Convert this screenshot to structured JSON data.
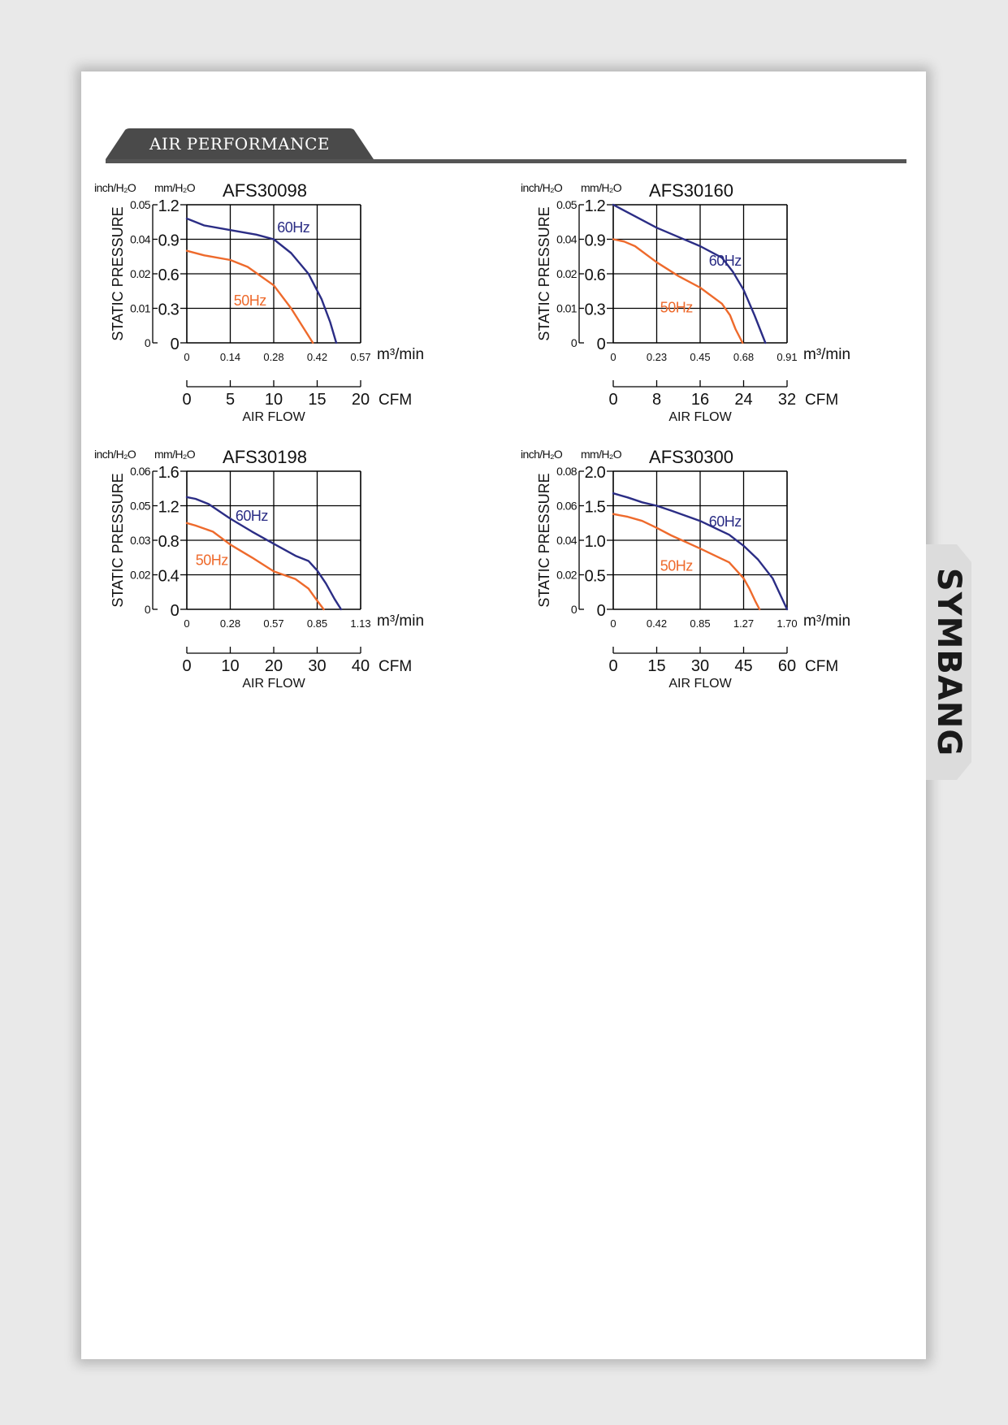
{
  "section": {
    "title": "AIR PERFORMANCE"
  },
  "brand": {
    "name": "SYMBANG",
    "color": "#1a1a1a",
    "accent": "#d8242a"
  },
  "colors": {
    "series_60hz": "#2b2d85",
    "series_50hz": "#ee6a2c",
    "header_rule": "#555555"
  },
  "chart_data": [
    {
      "type": "line",
      "title": "AFS30098",
      "unit_left": "inch/H₂O",
      "unit_right": "mm/H₂O",
      "ylabel": "STATIC PRESSURE",
      "xlabel": "AIR FLOW",
      "x_unit_top": "m³/min",
      "x_unit_bottom": "CFM",
      "x_ticks_top": [
        "0",
        "0.14",
        "0.28",
        "0.42",
        "0.57"
      ],
      "x_ticks_bottom": [
        "0",
        "5",
        "10",
        "15",
        "20"
      ],
      "y_ticks_mm": [
        "0",
        "0.3",
        "0.6",
        "0.9",
        "1.2"
      ],
      "y_ticks_inch": [
        "0",
        "0.01",
        "0.02",
        "0.04",
        "0.05"
      ],
      "xlim": [
        0,
        20
      ],
      "ylim": [
        0,
        1.2
      ],
      "grid": true,
      "series": [
        {
          "name": "60Hz",
          "x": [
            0,
            2,
            5,
            8,
            10,
            12,
            14,
            15.5,
            16.5,
            17.2
          ],
          "y": [
            1.08,
            1.02,
            0.98,
            0.94,
            0.9,
            0.78,
            0.6,
            0.38,
            0.18,
            0
          ]
        },
        {
          "name": "50Hz",
          "x": [
            0,
            2,
            5,
            7,
            10,
            12,
            13.5,
            14.5
          ],
          "y": [
            0.8,
            0.76,
            0.72,
            0.66,
            0.5,
            0.3,
            0.12,
            0
          ]
        }
      ]
    },
    {
      "type": "line",
      "title": "AFS30160",
      "unit_left": "inch/H₂O",
      "unit_right": "mm/H₂O",
      "ylabel": "STATIC PRESSURE",
      "xlabel": "AIR FLOW",
      "x_unit_top": "m³/min",
      "x_unit_bottom": "CFM",
      "x_ticks_top": [
        "0",
        "0.23",
        "0.45",
        "0.68",
        "0.91"
      ],
      "x_ticks_bottom": [
        "0",
        "8",
        "16",
        "24",
        "32"
      ],
      "y_ticks_mm": [
        "0",
        "0.3",
        "0.6",
        "0.9",
        "1.2"
      ],
      "y_ticks_inch": [
        "0",
        "0.01",
        "0.02",
        "0.04",
        "0.05"
      ],
      "xlim": [
        0,
        32
      ],
      "ylim": [
        0,
        1.2
      ],
      "grid": true,
      "series": [
        {
          "name": "60Hz",
          "x": [
            0,
            4,
            8,
            12,
            16,
            20,
            22,
            24,
            26,
            28
          ],
          "y": [
            1.2,
            1.1,
            1.0,
            0.92,
            0.84,
            0.74,
            0.62,
            0.46,
            0.24,
            0
          ]
        },
        {
          "name": "50Hz",
          "x": [
            0,
            2,
            4,
            8,
            12,
            16,
            20,
            21.5,
            22.5,
            23.8
          ],
          "y": [
            0.9,
            0.88,
            0.84,
            0.7,
            0.58,
            0.48,
            0.34,
            0.24,
            0.12,
            0
          ]
        }
      ]
    },
    {
      "type": "line",
      "title": "AFS30198",
      "unit_left": "inch/H₂O",
      "unit_right": "mm/H₂O",
      "ylabel": "STATIC PRESSURE",
      "xlabel": "AIR FLOW",
      "x_unit_top": "m³/min",
      "x_unit_bottom": "CFM",
      "x_ticks_top": [
        "0",
        "0.28",
        "0.57",
        "0.85",
        "1.13"
      ],
      "x_ticks_bottom": [
        "0",
        "10",
        "20",
        "30",
        "40"
      ],
      "y_ticks_mm": [
        "0",
        "0.4",
        "0.8",
        "1.2",
        "1.6"
      ],
      "y_ticks_inch": [
        "0",
        "0.02",
        "0.03",
        "0.05",
        "0.06"
      ],
      "xlim": [
        0,
        40
      ],
      "ylim": [
        0,
        1.6
      ],
      "grid": true,
      "series": [
        {
          "name": "60Hz",
          "x": [
            0,
            2,
            5,
            10,
            15,
            20,
            25,
            28,
            30,
            32,
            34,
            35.5
          ],
          "y": [
            1.3,
            1.28,
            1.22,
            1.05,
            0.9,
            0.76,
            0.62,
            0.56,
            0.45,
            0.3,
            0.12,
            0
          ]
        },
        {
          "name": "50Hz",
          "x": [
            0,
            2,
            6,
            10,
            15,
            20,
            25,
            28,
            30,
            31.5
          ],
          "y": [
            1.0,
            0.97,
            0.9,
            0.75,
            0.6,
            0.44,
            0.35,
            0.24,
            0.1,
            0
          ]
        }
      ]
    },
    {
      "type": "line",
      "title": "AFS30300",
      "unit_left": "inch/H₂O",
      "unit_right": "mm/H₂O",
      "ylabel": "STATIC PRESSURE",
      "xlabel": "AIR FLOW",
      "x_unit_top": "m³/min",
      "x_unit_bottom": "CFM",
      "x_ticks_top": [
        "0",
        "0.42",
        "0.85",
        "1.27",
        "1.70"
      ],
      "x_ticks_bottom": [
        "0",
        "15",
        "30",
        "45",
        "60"
      ],
      "y_ticks_mm": [
        "0",
        "0.5",
        "1.0",
        "1.5",
        "2.0"
      ],
      "y_ticks_inch": [
        "0",
        "0.02",
        "0.04",
        "0.06",
        "0.08"
      ],
      "xlim": [
        0,
        60
      ],
      "ylim": [
        0,
        2.0
      ],
      "grid": true,
      "series": [
        {
          "name": "60Hz",
          "x": [
            0,
            5,
            10,
            15,
            20,
            30,
            40,
            45,
            50,
            55,
            58,
            60
          ],
          "y": [
            1.68,
            1.62,
            1.55,
            1.5,
            1.43,
            1.28,
            1.08,
            0.92,
            0.72,
            0.45,
            0.18,
            0
          ]
        },
        {
          "name": "50Hz",
          "x": [
            0,
            5,
            10,
            15,
            20,
            30,
            40,
            45,
            47,
            49,
            50.5
          ],
          "y": [
            1.38,
            1.34,
            1.28,
            1.18,
            1.07,
            0.88,
            0.68,
            0.45,
            0.3,
            0.12,
            0
          ]
        }
      ]
    }
  ]
}
